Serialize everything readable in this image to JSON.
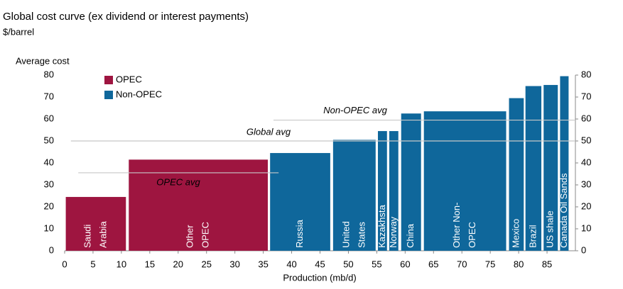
{
  "chart_data": {
    "type": "cost-curve",
    "title": "Global cost curve (ex dividend or interest payments)",
    "subtitle": "$/barrel",
    "y_label": "Average cost",
    "x_label": "Production (mb/d)",
    "xlim": [
      0,
      90
    ],
    "xticks": [
      0,
      5,
      10,
      15,
      20,
      25,
      30,
      35,
      40,
      45,
      50,
      55,
      60,
      65,
      70,
      75,
      80,
      85
    ],
    "ylim": [
      0,
      80
    ],
    "yticks": [
      0,
      10,
      20,
      30,
      40,
      50,
      60,
      70,
      80
    ],
    "legend": "top-left",
    "series": [
      {
        "name": "OPEC",
        "color": "#9e1540",
        "categories": [
          [
            "Saudi",
            "Arabia"
          ],
          [
            "Other",
            "OPEC"
          ]
        ],
        "x_start": [
          0.2,
          11.3
        ],
        "x_end": [
          10.8,
          35.8
        ],
        "values": [
          24.5,
          41.5
        ]
      },
      {
        "name": "Non-OPEC",
        "color": "#0f679b",
        "categories": [
          [
            "Russia"
          ],
          [
            "United",
            "States"
          ],
          [
            "Kazakhsta"
          ],
          [
            "Norway"
          ],
          [
            "China"
          ],
          [
            "Other Non-",
            "OPEC"
          ],
          [
            "Mexico"
          ],
          [
            "Brazil"
          ],
          [
            "US shale"
          ],
          [
            "Canada Oil Sands"
          ]
        ],
        "x_start": [
          36.2,
          47.3,
          55.2,
          57.2,
          59.3,
          63.3,
          78.3,
          81.2,
          84.4,
          87.3
        ],
        "x_end": [
          46.8,
          54.8,
          56.8,
          58.8,
          62.8,
          77.8,
          80.9,
          84.0,
          86.9,
          88.8
        ],
        "values": [
          44.5,
          50.5,
          54.5,
          54.5,
          62.5,
          63.5,
          69.5,
          75,
          75.5,
          79.5
        ]
      }
    ],
    "reference_lines": [
      {
        "label": "OPEC avg",
        "value": 35.5,
        "x_start": 2.4,
        "x_end": 37.7
      },
      {
        "label": "Global avg",
        "value": 50,
        "x_start": 1.1,
        "x_end": 90
      },
      {
        "label": "Non-OPEC avg",
        "value": 59.5,
        "x_start": 36.8,
        "x_end": 90
      }
    ]
  }
}
